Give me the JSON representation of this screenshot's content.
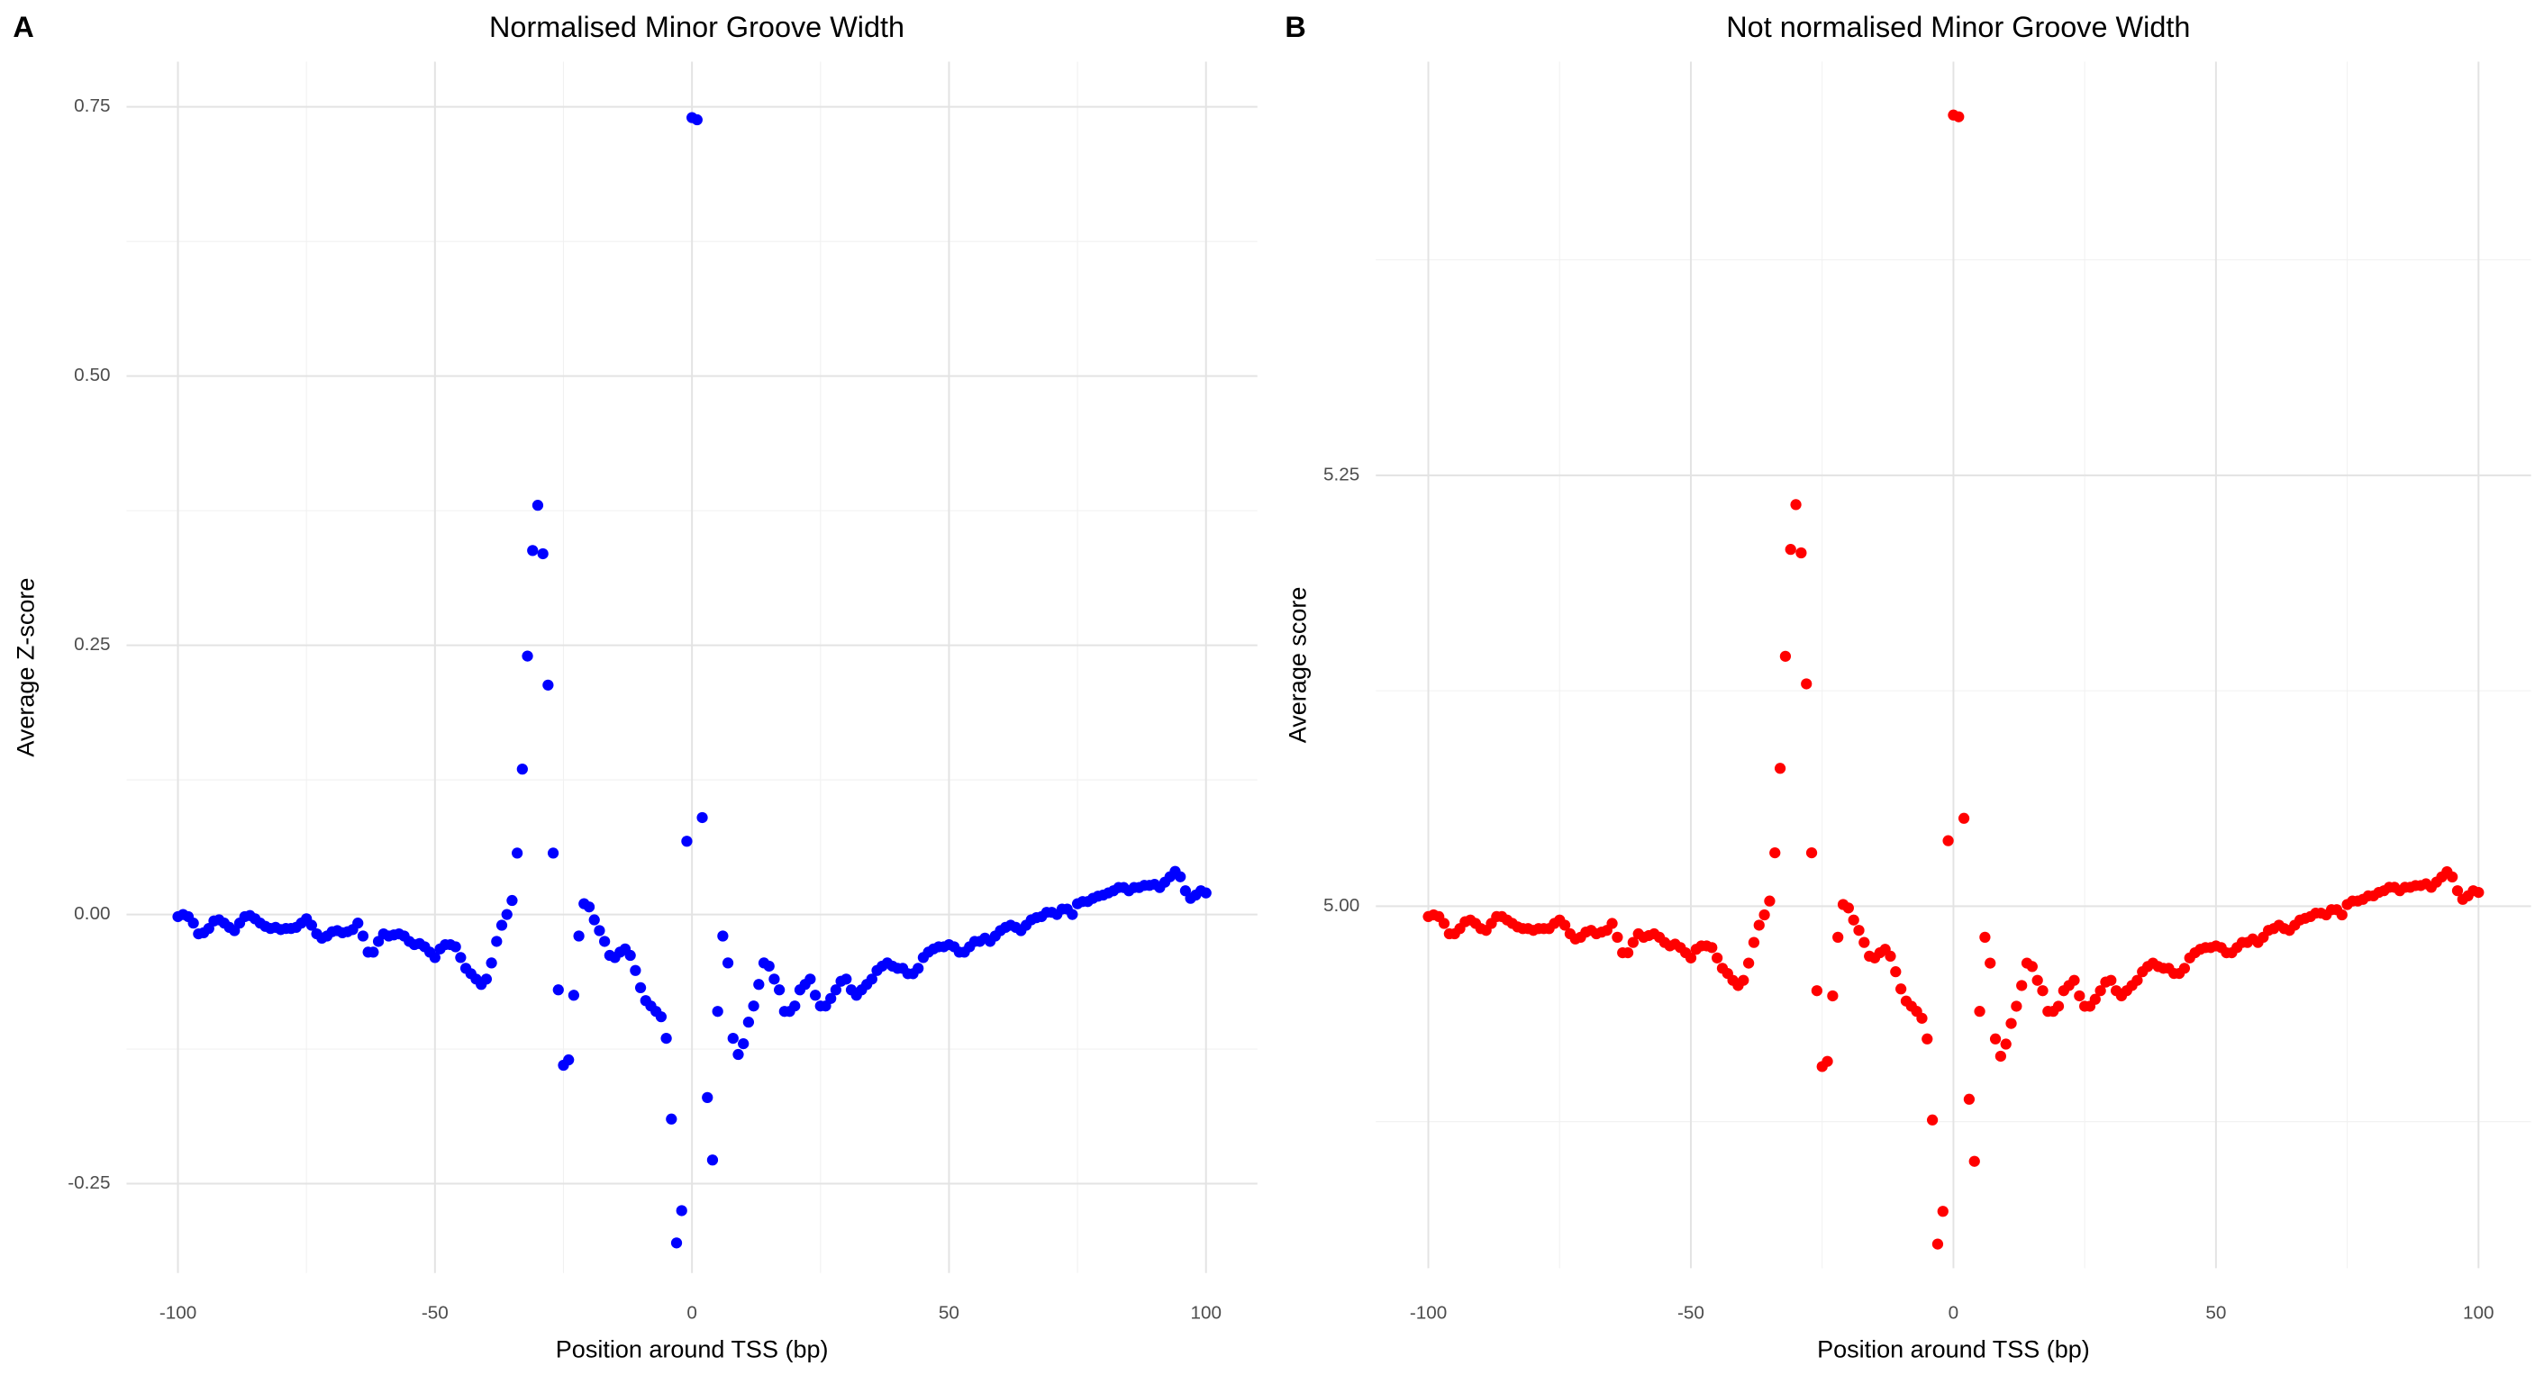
{
  "chart_data": [
    {
      "type": "scatter",
      "tag": "A",
      "title": "Normalised Minor Groove Width",
      "x_label": "Position around TSS (bp)",
      "y_label": "Average Z-score",
      "color": "#0000ff",
      "x": [
        -100,
        -99,
        -98,
        -97,
        -96,
        -95,
        -94,
        -93,
        -92,
        -91,
        -90,
        -89,
        -88,
        -87,
        -86,
        -85,
        -84,
        -83,
        -82,
        -81,
        -80,
        -79,
        -78,
        -77,
        -76,
        -75,
        -74,
        -73,
        -72,
        -71,
        -70,
        -69,
        -68,
        -67,
        -66,
        -65,
        -64,
        -63,
        -62,
        -61,
        -60,
        -59,
        -58,
        -57,
        -56,
        -55,
        -54,
        -53,
        -52,
        -51,
        -50,
        -49,
        -48,
        -47,
        -46,
        -45,
        -44,
        -43,
        -42,
        -41,
        -40,
        -39,
        -38,
        -37,
        -36,
        -35,
        -34,
        -33,
        -32,
        -31,
        -30,
        -29,
        -28,
        -27,
        -26,
        -25,
        -24,
        -23,
        -22,
        -21,
        -20,
        -19,
        -18,
        -17,
        -16,
        -15,
        -14,
        -13,
        -12,
        -11,
        -10,
        -9,
        -8,
        -7,
        -6,
        -5,
        -4,
        -3,
        -2,
        -1,
        0,
        1,
        2,
        3,
        4,
        5,
        6,
        7,
        8,
        9,
        10,
        11,
        12,
        13,
        14,
        15,
        16,
        17,
        18,
        19,
        20,
        21,
        22,
        23,
        24,
        25,
        26,
        27,
        28,
        29,
        30,
        31,
        32,
        33,
        34,
        35,
        36,
        37,
        38,
        39,
        40,
        41,
        42,
        43,
        44,
        45,
        46,
        47,
        48,
        49,
        50,
        51,
        52,
        53,
        54,
        55,
        56,
        57,
        58,
        59,
        60,
        61,
        62,
        63,
        64,
        65,
        66,
        67,
        68,
        69,
        70,
        71,
        72,
        73,
        74,
        75,
        76,
        77,
        78,
        79,
        80,
        81,
        82,
        83,
        84,
        85,
        86,
        87,
        88,
        89,
        90,
        91,
        92,
        93,
        94,
        95,
        96,
        97,
        98,
        99,
        100
      ],
      "values": [
        -0.002,
        0,
        -0.002,
        -0.008,
        -0.018,
        -0.017,
        -0.013,
        -0.006,
        -0.005,
        -0.008,
        -0.012,
        -0.015,
        -0.008,
        -0.002,
        -0.001,
        -0.004,
        -0.008,
        -0.011,
        -0.013,
        -0.012,
        -0.014,
        -0.013,
        -0.013,
        -0.012,
        -0.008,
        -0.004,
        -0.01,
        -0.018,
        -0.022,
        -0.02,
        -0.016,
        -0.015,
        -0.017,
        -0.016,
        -0.014,
        -0.008,
        -0.02,
        -0.035,
        -0.035,
        -0.025,
        -0.018,
        -0.02,
        -0.019,
        -0.018,
        -0.02,
        -0.025,
        -0.028,
        -0.027,
        -0.03,
        -0.035,
        -0.04,
        -0.032,
        -0.028,
        -0.028,
        -0.03,
        -0.04,
        -0.05,
        -0.055,
        -0.06,
        -0.065,
        -0.06,
        -0.045,
        -0.025,
        -0.01,
        0,
        0.013,
        0.057,
        0.135,
        0.24,
        0.338,
        0.38,
        0.335,
        0.213,
        0.057,
        -0.07,
        -0.14,
        -0.135,
        -0.075,
        -0.02,
        0.01,
        0.007,
        -0.005,
        -0.015,
        -0.025,
        -0.038,
        -0.04,
        -0.035,
        -0.032,
        -0.038,
        -0.052,
        -0.068,
        -0.08,
        -0.085,
        -0.09,
        -0.095,
        -0.115,
        -0.19,
        -0.305,
        -0.275,
        0.068,
        0.74,
        0.738,
        0.09,
        -0.17,
        -0.228,
        -0.09,
        -0.02,
        -0.045,
        -0.115,
        -0.13,
        -0.12,
        -0.1,
        -0.085,
        -0.065,
        -0.045,
        -0.048,
        -0.06,
        -0.07,
        -0.09,
        -0.09,
        -0.085,
        -0.07,
        -0.065,
        -0.06,
        -0.075,
        -0.085,
        -0.085,
        -0.078,
        -0.07,
        -0.062,
        -0.06,
        -0.07,
        -0.075,
        -0.07,
        -0.065,
        -0.06,
        -0.052,
        -0.048,
        -0.045,
        -0.048,
        -0.05,
        -0.05,
        -0.055,
        -0.055,
        -0.05,
        -0.04,
        -0.035,
        -0.032,
        -0.03,
        -0.03,
        -0.028,
        -0.03,
        -0.035,
        -0.035,
        -0.03,
        -0.025,
        -0.025,
        -0.022,
        -0.025,
        -0.02,
        -0.015,
        -0.012,
        -0.01,
        -0.012,
        -0.015,
        -0.01,
        -0.005,
        -0.003,
        -0.002,
        0.002,
        0.002,
        0,
        0.005,
        0.005,
        0,
        0.01,
        0.012,
        0.012,
        0.015,
        0.017,
        0.018,
        0.02,
        0.022,
        0.025,
        0.025,
        0.022,
        0.025,
        0.025,
        0.027,
        0.027,
        0.028,
        0.025,
        0.03,
        0.035,
        0.04,
        0.035,
        0.022,
        0.015,
        0.018,
        0.022,
        0.02
      ],
      "xlim": [
        -110,
        110
      ],
      "ylim": [
        -0.333,
        0.792
      ],
      "xticks": [
        -100,
        -50,
        0,
        50,
        100
      ],
      "yticks": [
        -0.25,
        {
          "value": 0,
          "label": "0.00"
        },
        0.25,
        {
          "value": 0.5,
          "label": "0.50"
        },
        0.75
      ],
      "grid": true
    },
    {
      "type": "scatter",
      "tag": "B",
      "title": "Not normalised Minor Groove Width",
      "x_label": "Position around TSS (bp)",
      "y_label": "Average score",
      "color": "#ff0000",
      "x": [
        -100,
        -99,
        -98,
        -97,
        -96,
        -95,
        -94,
        -93,
        -92,
        -91,
        -90,
        -89,
        -88,
        -87,
        -86,
        -85,
        -84,
        -83,
        -82,
        -81,
        -80,
        -79,
        -78,
        -77,
        -76,
        -75,
        -74,
        -73,
        -72,
        -71,
        -70,
        -69,
        -68,
        -67,
        -66,
        -65,
        -64,
        -63,
        -62,
        -61,
        -60,
        -59,
        -58,
        -57,
        -56,
        -55,
        -54,
        -53,
        -52,
        -51,
        -50,
        -49,
        -48,
        -47,
        -46,
        -45,
        -44,
        -43,
        -42,
        -41,
        -40,
        -39,
        -38,
        -37,
        -36,
        -35,
        -34,
        -33,
        -32,
        -31,
        -30,
        -29,
        -28,
        -27,
        -26,
        -25,
        -24,
        -23,
        -22,
        -21,
        -20,
        -19,
        -18,
        -17,
        -16,
        -15,
        -14,
        -13,
        -12,
        -11,
        -10,
        -9,
        -8,
        -7,
        -6,
        -5,
        -4,
        -3,
        -2,
        -1,
        0,
        1,
        2,
        3,
        4,
        5,
        6,
        7,
        8,
        9,
        10,
        11,
        12,
        13,
        14,
        15,
        16,
        17,
        18,
        19,
        20,
        21,
        22,
        23,
        24,
        25,
        26,
        27,
        28,
        29,
        30,
        31,
        32,
        33,
        34,
        35,
        36,
        37,
        38,
        39,
        40,
        41,
        42,
        43,
        44,
        45,
        46,
        47,
        48,
        49,
        50,
        51,
        52,
        53,
        54,
        55,
        56,
        57,
        58,
        59,
        60,
        61,
        62,
        63,
        64,
        65,
        66,
        67,
        68,
        69,
        70,
        71,
        72,
        73,
        74,
        75,
        76,
        77,
        78,
        79,
        80,
        81,
        82,
        83,
        84,
        85,
        86,
        87,
        88,
        89,
        90,
        91,
        92,
        93,
        94,
        95,
        96,
        97,
        98,
        99,
        100
      ],
      "values": [
        4.994,
        4.995,
        4.994,
        4.99,
        4.984,
        4.984,
        4.987,
        4.991,
        4.992,
        4.99,
        4.987,
        4.986,
        4.99,
        4.994,
        4.994,
        4.992,
        4.99,
        4.988,
        4.987,
        4.987,
        4.986,
        4.987,
        4.987,
        4.987,
        4.99,
        4.992,
        4.989,
        4.984,
        4.981,
        4.982,
        4.985,
        4.986,
        4.984,
        4.985,
        4.986,
        4.99,
        4.982,
        4.973,
        4.973,
        4.979,
        4.984,
        4.982,
        4.983,
        4.984,
        4.982,
        4.979,
        4.977,
        4.978,
        4.976,
        4.973,
        4.97,
        4.975,
        4.977,
        4.977,
        4.976,
        4.97,
        4.964,
        4.961,
        4.957,
        4.954,
        4.957,
        4.967,
        4.979,
        4.989,
        4.995,
        5.003,
        5.031,
        5.08,
        5.145,
        5.207,
        5.233,
        5.205,
        5.129,
        5.031,
        4.951,
        4.907,
        4.91,
        4.948,
        4.982,
        5.001,
        4.999,
        4.992,
        4.986,
        4.979,
        4.971,
        4.97,
        4.973,
        4.975,
        4.971,
        4.962,
        4.952,
        4.945,
        4.942,
        4.939,
        4.935,
        4.923,
        4.876,
        4.804,
        4.823,
        5.038,
        5.459,
        5.458,
        5.051,
        4.888,
        4.852,
        4.939,
        4.982,
        4.967,
        4.923,
        4.913,
        4.92,
        4.932,
        4.942,
        4.954,
        4.967,
        4.965,
        4.957,
        4.951,
        4.939,
        4.939,
        4.942,
        4.951,
        4.954,
        4.957,
        4.948,
        4.942,
        4.942,
        4.946,
        4.951,
        4.956,
        4.957,
        4.951,
        4.948,
        4.951,
        4.954,
        4.957,
        4.962,
        4.965,
        4.967,
        4.965,
        4.964,
        4.964,
        4.961,
        4.961,
        4.964,
        4.97,
        4.973,
        4.975,
        4.976,
        4.976,
        4.977,
        4.976,
        4.973,
        4.973,
        4.976,
        4.979,
        4.979,
        4.981,
        4.979,
        4.982,
        4.986,
        4.987,
        4.989,
        4.987,
        4.986,
        4.989,
        4.992,
        4.993,
        4.994,
        4.996,
        4.996,
        4.995,
        4.998,
        4.998,
        4.995,
        5.001,
        5.003,
        5.003,
        5.004,
        5.006,
        5.006,
        5.008,
        5.009,
        5.011,
        5.011,
        5.009,
        5.011,
        5.011,
        5.012,
        5.012,
        5.013,
        5.011,
        5.014,
        5.017,
        5.02,
        5.017,
        5.009,
        5.004,
        5.006,
        5.009,
        5.008
      ],
      "xlim": [
        -110,
        110
      ],
      "ylim": [
        4.79,
        5.49
      ],
      "xticks": [
        -100,
        -50,
        0,
        50,
        100
      ],
      "yticks": [
        {
          "value": 5,
          "label": "5.00"
        },
        5.25
      ],
      "grid": true
    }
  ]
}
